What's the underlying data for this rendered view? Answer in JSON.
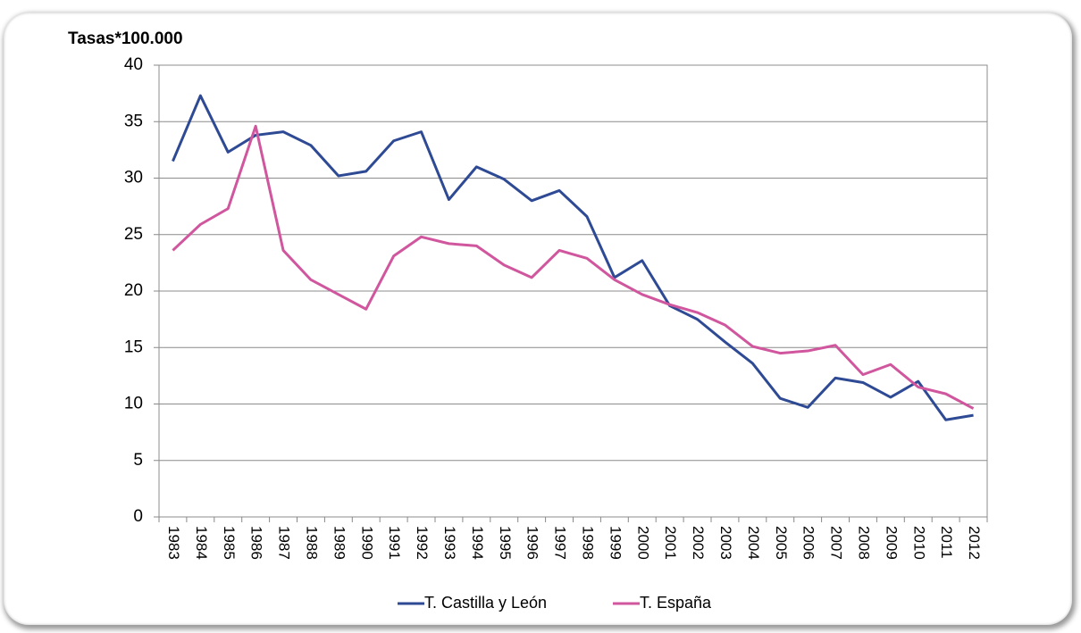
{
  "chart_data": {
    "type": "line",
    "title": "Tasas*100.000",
    "categories": [
      "1983",
      "1984",
      "1985",
      "1986",
      "1987",
      "1988",
      "1989",
      "1990",
      "1991",
      "1992",
      "1993",
      "1994",
      "1995",
      "1996",
      "1997",
      "1998",
      "1999",
      "2000",
      "2001",
      "2002",
      "2003",
      "2004",
      "2005",
      "2006",
      "2007",
      "2008",
      "2009",
      "2010",
      "2011",
      "2012"
    ],
    "series": [
      {
        "name": "T. Castilla y León",
        "color": "#2e4a94",
        "values": [
          31.5,
          37.3,
          32.3,
          33.8,
          34.1,
          32.9,
          30.2,
          30.6,
          33.3,
          34.1,
          28.1,
          31.0,
          29.9,
          28.0,
          28.9,
          26.6,
          21.2,
          22.7,
          18.7,
          17.5,
          15.5,
          13.6,
          10.5,
          9.7,
          12.3,
          11.9,
          10.6,
          12.0,
          8.6,
          9.0
        ]
      },
      {
        "name": "T. España",
        "color": "#d0569e",
        "values": [
          23.6,
          25.9,
          27.3,
          34.6,
          23.6,
          21.0,
          19.7,
          18.4,
          23.1,
          24.8,
          24.2,
          24.0,
          22.3,
          21.2,
          23.6,
          22.9,
          21.0,
          19.7,
          18.8,
          18.1,
          17.0,
          15.1,
          14.5,
          14.7,
          15.2,
          12.6,
          13.5,
          11.5,
          10.9,
          9.6
        ]
      }
    ],
    "ylim": [
      0,
      40
    ],
    "yticks": [
      0,
      5,
      10,
      15,
      20,
      25,
      30,
      35,
      40
    ],
    "grid": true,
    "legend": "bottom"
  }
}
